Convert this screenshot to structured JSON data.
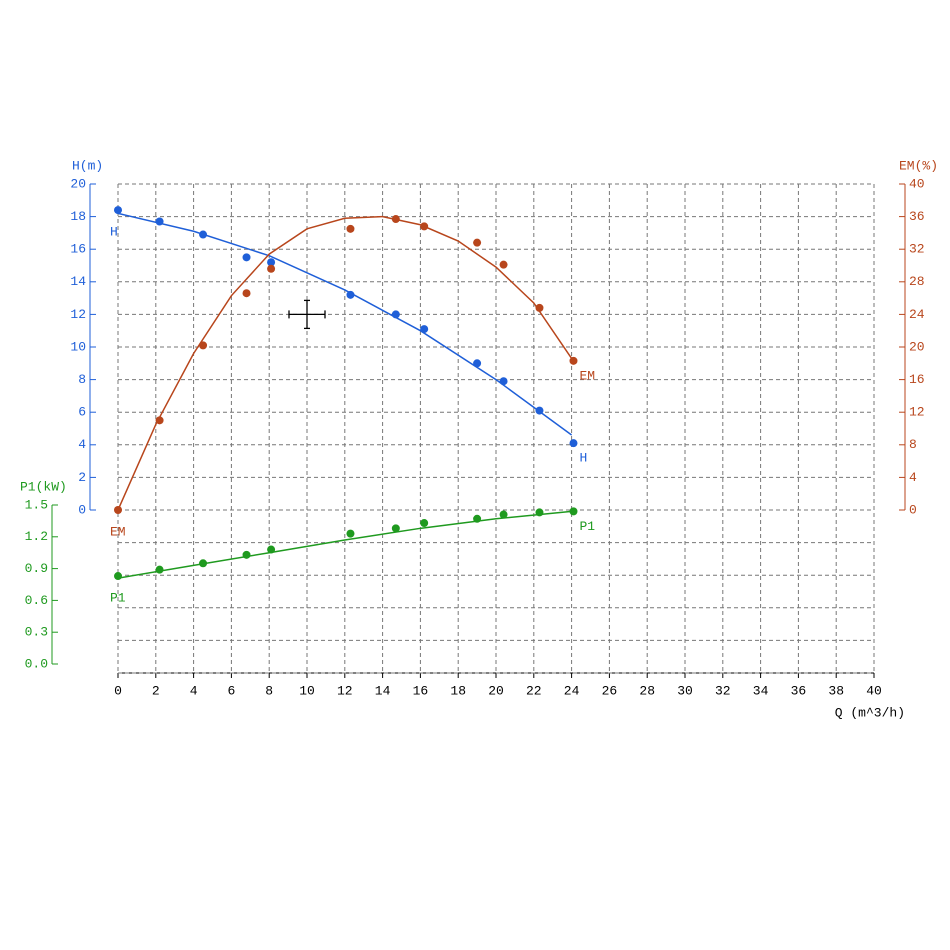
{
  "chart_data": {
    "type": "line",
    "x_label": "Q (m^3/h)",
    "xlim": [
      0,
      40
    ],
    "xticks": [
      0,
      2,
      4,
      6,
      8,
      10,
      12,
      14,
      16,
      18,
      20,
      22,
      24,
      26,
      28,
      30,
      32,
      34,
      36,
      38,
      40
    ],
    "y_label": "H(m)",
    "ylim": [
      0,
      20
    ],
    "yticks": [
      0,
      2,
      4,
      6,
      8,
      10,
      12,
      14,
      16,
      18,
      20
    ],
    "y_color": "#1f5fd8",
    "y2_label": "EM(%)",
    "y2lim": [
      0,
      40
    ],
    "y2ticks": [
      0,
      4,
      8,
      12,
      16,
      20,
      24,
      28,
      32,
      36,
      40
    ],
    "y2_color": "#b8461c",
    "y3_label": "P1(kW)",
    "y3lim": [
      0,
      1.5
    ],
    "y3ticks": [
      {
        "value": 0,
        "label": "0.0"
      },
      0.3,
      0.6,
      0.9,
      1.2,
      1.5
    ],
    "y3_color": "#1f9a1f",
    "grid": true,
    "series": [
      {
        "name": "H",
        "color": "#1f5fd8",
        "axis": "y",
        "x": [
          0,
          2.2,
          4.5,
          6.8,
          8.1,
          12.3,
          14.7,
          16.2,
          19,
          20.4,
          22.3,
          24.1
        ],
        "values": [
          18.4,
          17.7,
          16.9,
          15.5,
          15.2,
          13.2,
          12.0,
          11.1,
          9.0,
          7.9,
          6.1,
          4.1
        ],
        "fit_x": [
          0,
          4,
          8,
          12,
          16,
          20,
          24
        ],
        "fit_values": [
          18.2,
          17.1,
          15.6,
          13.5,
          11.0,
          8.0,
          4.6
        ]
      },
      {
        "name": "EM",
        "color": "#b8461c",
        "axis": "y2",
        "x": [
          0,
          2.2,
          4.5,
          6.8,
          8.1,
          12.3,
          14.7,
          16.2,
          19,
          20.4,
          22.3,
          24.1
        ],
        "values": [
          0,
          11.0,
          20.2,
          26.6,
          29.6,
          34.5,
          35.7,
          34.8,
          32.8,
          30.1,
          24.8,
          18.3
        ],
        "fit_x": [
          0,
          2,
          4,
          6,
          8,
          10,
          12,
          14,
          16,
          18,
          20,
          22,
          24
        ],
        "fit_values": [
          0,
          10.5,
          19.2,
          26.3,
          31.4,
          34.5,
          35.8,
          36.0,
          35.0,
          33.0,
          29.8,
          25.4,
          18.6
        ]
      },
      {
        "name": "P1",
        "color": "#1f9a1f",
        "axis": "y3",
        "x": [
          0,
          2.2,
          4.5,
          6.8,
          8.1,
          12.3,
          14.7,
          16.2,
          19,
          20.4,
          22.3,
          24.1
        ],
        "values": [
          0.83,
          0.89,
          0.95,
          1.03,
          1.08,
          1.23,
          1.28,
          1.33,
          1.37,
          1.41,
          1.43,
          1.44
        ],
        "fit_x": [
          0,
          4,
          8,
          12,
          16,
          20,
          24
        ],
        "fit_values": [
          0.81,
          0.93,
          1.05,
          1.17,
          1.28,
          1.37,
          1.44
        ]
      }
    ],
    "cursor": {
      "x": 10,
      "y": 12
    }
  }
}
